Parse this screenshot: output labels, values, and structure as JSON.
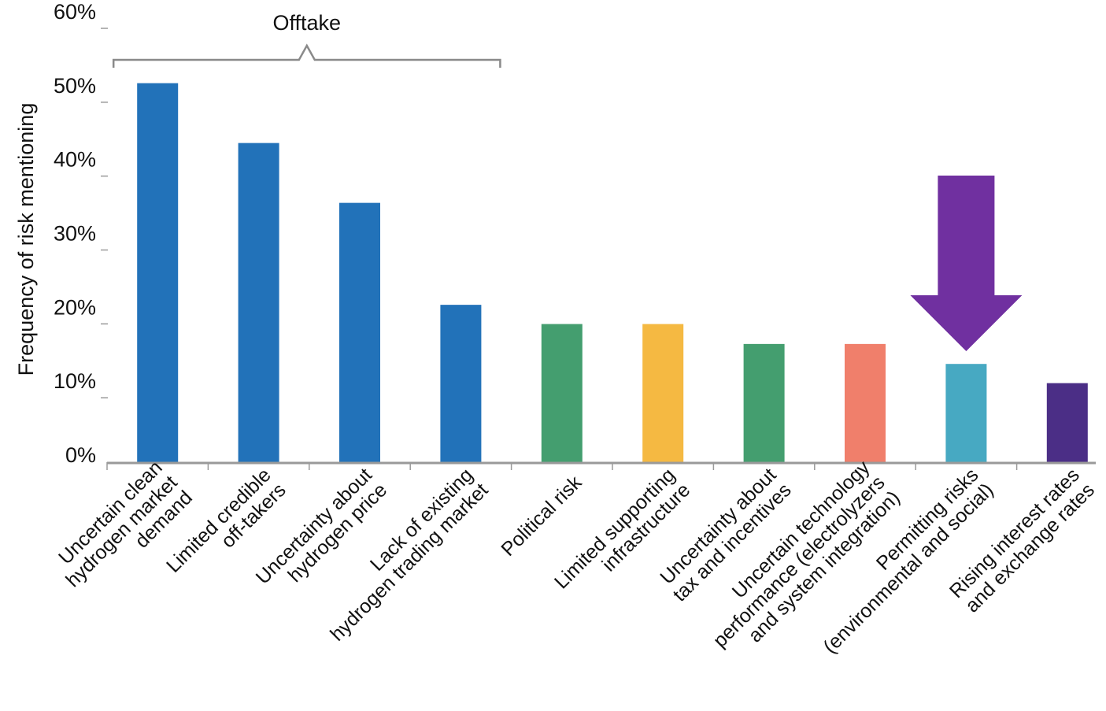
{
  "chart_data": {
    "type": "bar",
    "title": "",
    "xlabel": "",
    "ylabel": "Frequency of risk mentioning",
    "ylim": [
      0,
      60
    ],
    "y_ticks": [
      "0%",
      "10%",
      "20%",
      "30%",
      "40%",
      "50%",
      "60%"
    ],
    "grid": false,
    "categories": [
      [
        "Uncertain clean",
        "hydrogen market",
        "demand"
      ],
      [
        "Limited credible",
        "off-takers"
      ],
      [
        "Uncertainty about",
        "hydrogen price"
      ],
      [
        "Lack of existing",
        "hydrogen trading market"
      ],
      [
        "Political risk"
      ],
      [
        "Limited supporting",
        "infrastructure"
      ],
      [
        "Uncertainty about",
        "tax and incentives"
      ],
      [
        "Uncertain technology",
        "performance (electrolyzers",
        "and system integration)"
      ],
      [
        "Permitting risks",
        "(environmental and social)"
      ],
      [
        "Rising interest rates",
        "and exchange rates"
      ]
    ],
    "values": [
      51.3,
      43.2,
      35.1,
      21.3,
      18.7,
      18.7,
      16.0,
      16.0,
      13.3,
      10.7
    ],
    "bar_colors": [
      "#2272b9",
      "#2272b9",
      "#2272b9",
      "#2272b9",
      "#449e6f",
      "#f5b942",
      "#449e6f",
      "#f07f6b",
      "#47a9c2",
      "#4b2e86"
    ],
    "group_bracket": {
      "label": "Offtake",
      "from_index": 0,
      "to_index": 3
    },
    "highlight_arrow": {
      "target_index": 8,
      "color": "#7030a0"
    },
    "axis_color": "#9a9a9a"
  }
}
